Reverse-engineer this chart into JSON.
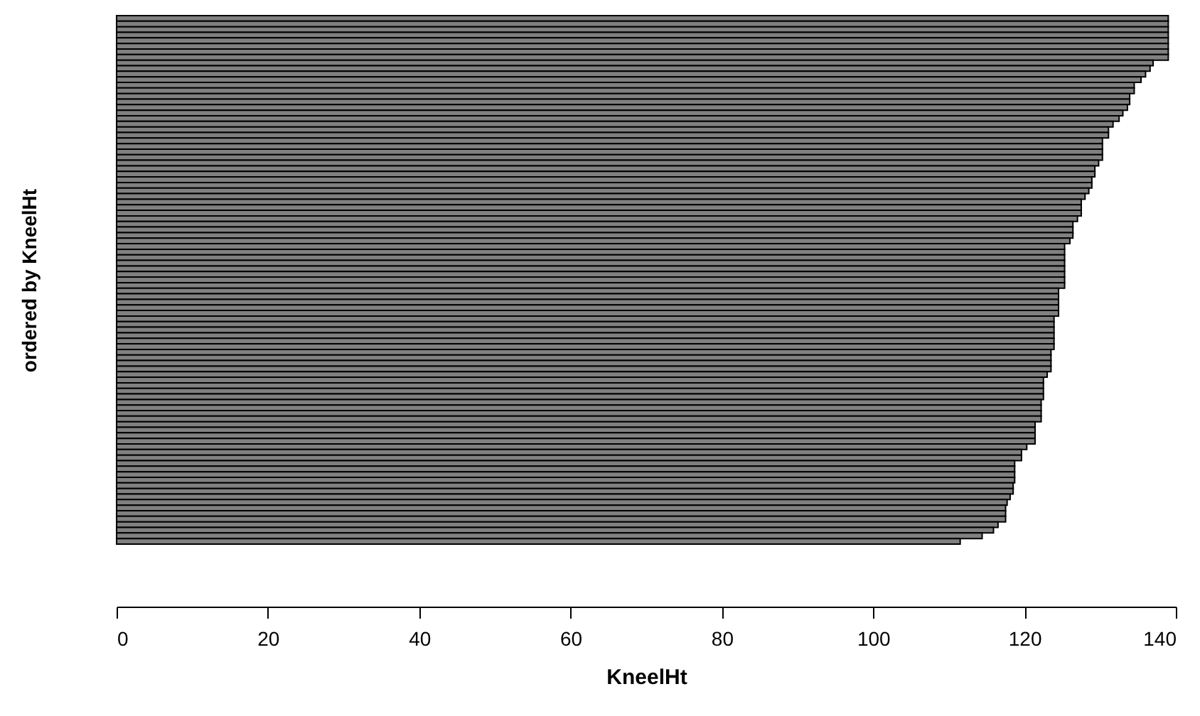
{
  "chart_data": {
    "type": "bar",
    "orientation": "horizontal",
    "xlabel": "KneelHt",
    "ylabel": "ordered by KneelHt",
    "categories": [
      null,
      null,
      null,
      null,
      null,
      null,
      null,
      null,
      null,
      null,
      null,
      null,
      null,
      null,
      null,
      null,
      null,
      null,
      null,
      null,
      null,
      null,
      null,
      null,
      null,
      null,
      null,
      null,
      null,
      null,
      null,
      null,
      null,
      null,
      null,
      null,
      null,
      null,
      null,
      null,
      null,
      null,
      null,
      null,
      null,
      null,
      null,
      null,
      null,
      null,
      null,
      null,
      null,
      null,
      null,
      null,
      null,
      null,
      null,
      null,
      null,
      null,
      null,
      null,
      null,
      null,
      null,
      null,
      null,
      null,
      null,
      null,
      null,
      null,
      null,
      null,
      null,
      null,
      null,
      null,
      null,
      null,
      null,
      null,
      null,
      null,
      null,
      null,
      null,
      null,
      null,
      null,
      null,
      null,
      null
    ],
    "values": [
      139,
      139,
      139,
      139,
      139,
      139,
      139,
      139,
      137,
      136.6,
      136,
      135.4,
      134.5,
      134.5,
      133.9,
      133.9,
      133.6,
      133,
      132.5,
      131.7,
      131.1,
      131.1,
      130.3,
      130.3,
      130.3,
      130.3,
      129.8,
      129.3,
      129.3,
      128.9,
      128.9,
      128.5,
      128,
      127.5,
      127.5,
      127.5,
      127,
      126.4,
      126.4,
      126.4,
      126,
      125.3,
      125.3,
      125.3,
      125.3,
      125.3,
      125.3,
      125.3,
      125.3,
      124.5,
      124.5,
      124.5,
      124.5,
      124.5,
      123.9,
      123.9,
      123.9,
      123.9,
      123.9,
      123.9,
      123.5,
      123.5,
      123.5,
      123.5,
      123,
      122.5,
      122.5,
      122.5,
      122.5,
      122.2,
      122.2,
      122.2,
      122.2,
      121.4,
      121.4,
      121.4,
      121.4,
      120.3,
      119.6,
      119.6,
      118.7,
      118.7,
      118.7,
      118.7,
      118.5,
      118.5,
      118.1,
      117.7,
      117.5,
      117.5,
      117.5,
      116.5,
      115.9,
      114.4,
      111.5
    ],
    "color": "#808080",
    "xlim": [
      0,
      140
    ],
    "xticks": [
      0,
      20,
      40,
      60,
      80,
      100,
      120,
      140
    ],
    "tick_labels": "x"
  }
}
